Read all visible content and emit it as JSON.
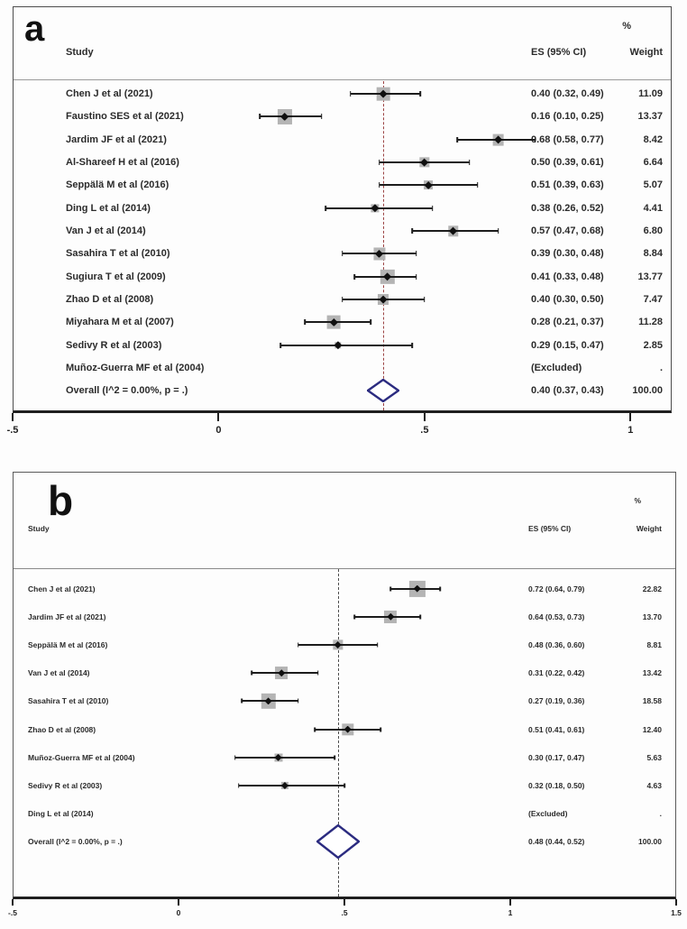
{
  "chart_data": [
    {
      "type": "scatter",
      "subtype": "forest-plot",
      "letter": "a",
      "columns": {
        "study": "Study",
        "es": "ES (95% CI)",
        "pct": "%",
        "weight": "Weight"
      },
      "axis": {
        "min": -0.5,
        "max": 1.1,
        "ticks": [
          {
            "v": -0.5,
            "label": "-.5"
          },
          {
            "v": 0,
            "label": "0"
          },
          {
            "v": 0.5,
            "label": ".5"
          },
          {
            "v": 1,
            "label": "1"
          }
        ]
      },
      "reference_line": {
        "value": 0.4,
        "style": "dashed",
        "color": "#9c4444"
      },
      "marker_color": "#b4b4b4",
      "diamond_color": "#2b2b80",
      "rows": [
        {
          "type": "study",
          "label": "Chen J et al (2021)",
          "es": 0.4,
          "lo": 0.32,
          "hi": 0.49,
          "weight": 11.09,
          "es_text": "0.40 (0.32, 0.49)",
          "weight_text": "11.09"
        },
        {
          "type": "study",
          "label": "Faustino SES et al (2021)",
          "es": 0.16,
          "lo": 0.1,
          "hi": 0.25,
          "weight": 13.37,
          "es_text": "0.16 (0.10, 0.25)",
          "weight_text": "13.37"
        },
        {
          "type": "study",
          "label": "Jardim JF et al (2021)",
          "es": 0.68,
          "lo": 0.58,
          "hi": 0.77,
          "weight": 8.42,
          "es_text": "0.68 (0.58, 0.77)",
          "weight_text": "8.42"
        },
        {
          "type": "study",
          "label": "Al-Shareef H et al (2016)",
          "es": 0.5,
          "lo": 0.39,
          "hi": 0.61,
          "weight": 6.64,
          "es_text": "0.50 (0.39, 0.61)",
          "weight_text": "6.64"
        },
        {
          "type": "study",
          "label": "Seppälä M et al (2016)",
          "es": 0.51,
          "lo": 0.39,
          "hi": 0.63,
          "weight": 5.07,
          "es_text": "0.51 (0.39, 0.63)",
          "weight_text": "5.07"
        },
        {
          "type": "study",
          "label": "Ding L et al (2014)",
          "es": 0.38,
          "lo": 0.26,
          "hi": 0.52,
          "weight": 4.41,
          "es_text": "0.38 (0.26, 0.52)",
          "weight_text": "4.41"
        },
        {
          "type": "study",
          "label": "Van J et al (2014)",
          "es": 0.57,
          "lo": 0.47,
          "hi": 0.68,
          "weight": 6.8,
          "es_text": "0.57 (0.47, 0.68)",
          "weight_text": "6.80"
        },
        {
          "type": "study",
          "label": "Sasahira T et al (2010)",
          "es": 0.39,
          "lo": 0.3,
          "hi": 0.48,
          "weight": 8.84,
          "es_text": "0.39 (0.30, 0.48)",
          "weight_text": "8.84"
        },
        {
          "type": "study",
          "label": "Sugiura T et al (2009)",
          "es": 0.41,
          "lo": 0.33,
          "hi": 0.48,
          "weight": 13.77,
          "es_text": "0.41 (0.33, 0.48)",
          "weight_text": "13.77"
        },
        {
          "type": "study",
          "label": "Zhao D et al (2008)",
          "es": 0.4,
          "lo": 0.3,
          "hi": 0.5,
          "weight": 7.47,
          "es_text": "0.40 (0.30, 0.50)",
          "weight_text": "7.47"
        },
        {
          "type": "study",
          "label": "Miyahara M et al (2007)",
          "es": 0.28,
          "lo": 0.21,
          "hi": 0.37,
          "weight": 11.28,
          "es_text": "0.28 (0.21, 0.37)",
          "weight_text": "11.28"
        },
        {
          "type": "study",
          "label": "Sedivy R et al (2003)",
          "es": 0.29,
          "lo": 0.15,
          "hi": 0.47,
          "weight": 2.85,
          "es_text": "0.29 (0.15, 0.47)",
          "weight_text": "2.85"
        },
        {
          "type": "excluded",
          "label": "Muñoz-Guerra MF et al (2004)",
          "es_text": "(Excluded)",
          "weight_text": "."
        },
        {
          "type": "overall",
          "label": "Overall  (I^2 = 0.00%, p = .)",
          "es": 0.4,
          "lo": 0.37,
          "hi": 0.43,
          "es_text": "0.40 (0.37, 0.43)",
          "weight_text": "100.00"
        }
      ]
    },
    {
      "type": "scatter",
      "subtype": "forest-plot",
      "letter": "b",
      "columns": {
        "study": "Study",
        "es": "ES (95% CI)",
        "pct": "%",
        "weight": "Weight"
      },
      "axis": {
        "min": -0.5,
        "max": 1.5,
        "ticks": [
          {
            "v": -0.5,
            "label": "-.5"
          },
          {
            "v": 0,
            "label": "0"
          },
          {
            "v": 0.5,
            "label": ".5"
          },
          {
            "v": 1,
            "label": "1"
          },
          {
            "v": 1.5,
            "label": "1.5"
          }
        ]
      },
      "reference_line": {
        "value": 0.48,
        "style": "dashed",
        "color": "#4e4e4e"
      },
      "marker_color": "#b4b4b4",
      "diamond_color": "#2b2b80",
      "rows": [
        {
          "type": "study",
          "label": "Chen J et al (2021)",
          "es": 0.72,
          "lo": 0.64,
          "hi": 0.79,
          "weight": 22.82,
          "es_text": "0.72 (0.64, 0.79)",
          "weight_text": "22.82"
        },
        {
          "type": "study",
          "label": "Jardim JF et al (2021)",
          "es": 0.64,
          "lo": 0.53,
          "hi": 0.73,
          "weight": 13.7,
          "es_text": "0.64 (0.53, 0.73)",
          "weight_text": "13.70"
        },
        {
          "type": "study",
          "label": "Seppälä M et al (2016)",
          "es": 0.48,
          "lo": 0.36,
          "hi": 0.6,
          "weight": 8.81,
          "es_text": "0.48 (0.36, 0.60)",
          "weight_text": "8.81"
        },
        {
          "type": "study",
          "label": "Van J et al (2014)",
          "es": 0.31,
          "lo": 0.22,
          "hi": 0.42,
          "weight": 13.42,
          "es_text": "0.31 (0.22, 0.42)",
          "weight_text": "13.42"
        },
        {
          "type": "study",
          "label": "Sasahira T et al (2010)",
          "es": 0.27,
          "lo": 0.19,
          "hi": 0.36,
          "weight": 18.58,
          "es_text": "0.27 (0.19, 0.36)",
          "weight_text": "18.58"
        },
        {
          "type": "study",
          "label": "Zhao D et al (2008)",
          "es": 0.51,
          "lo": 0.41,
          "hi": 0.61,
          "weight": 12.4,
          "es_text": "0.51 (0.41, 0.61)",
          "weight_text": "12.40"
        },
        {
          "type": "study",
          "label": "Muñoz-Guerra MF et al (2004)",
          "es": 0.3,
          "lo": 0.17,
          "hi": 0.47,
          "weight": 5.63,
          "es_text": "0.30 (0.17, 0.47)",
          "weight_text": "5.63"
        },
        {
          "type": "study",
          "label": "Sedivy R et al (2003)",
          "es": 0.32,
          "lo": 0.18,
          "hi": 0.5,
          "weight": 4.63,
          "es_text": "0.32 (0.18, 0.50)",
          "weight_text": "4.63"
        },
        {
          "type": "excluded",
          "label": "Ding L et al (2014)",
          "es_text": "(Excluded)",
          "weight_text": "."
        },
        {
          "type": "overall",
          "label": "Overall  (I^2 = 0.00%, p = .)",
          "es": 0.48,
          "lo": 0.44,
          "hi": 0.52,
          "es_text": "0.48 (0.44, 0.52)",
          "weight_text": "100.00"
        }
      ]
    }
  ]
}
